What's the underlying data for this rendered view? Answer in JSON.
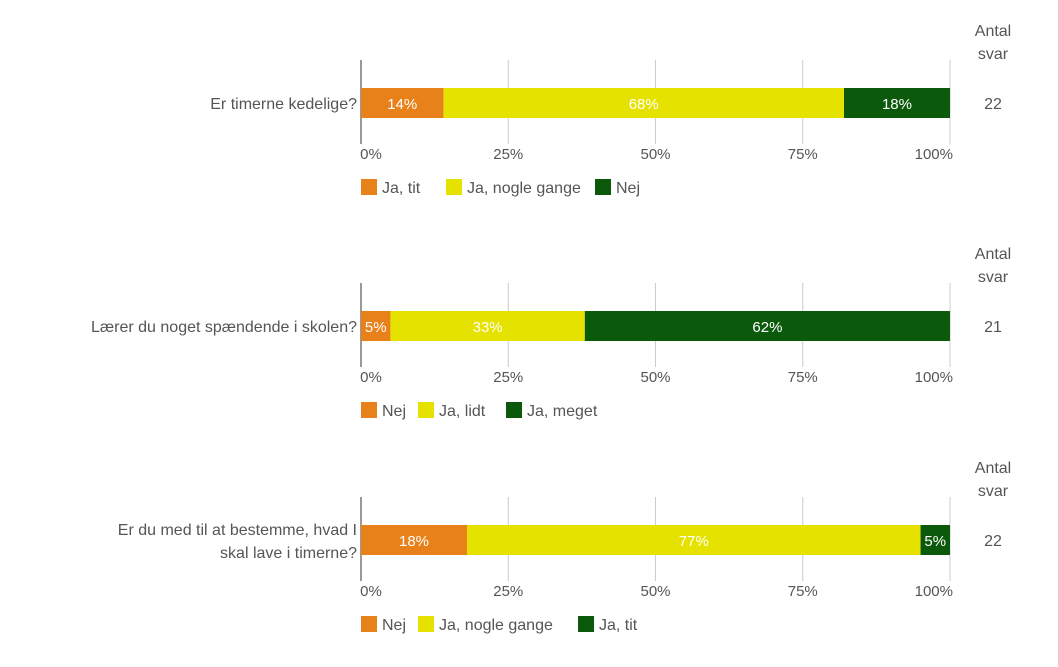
{
  "chart_data": [
    {
      "type": "bar",
      "orientation": "horizontal",
      "stacked": true,
      "percent": true,
      "question": "Er timerne kedelige?",
      "count_header": [
        "Antal",
        "svar"
      ],
      "count": "22",
      "xticks": [
        "0%",
        "25%",
        "50%",
        "75%",
        "100%"
      ],
      "xlim": [
        0,
        100
      ],
      "grid": true,
      "legend_position": "bottom",
      "series": [
        {
          "name": "Ja, tit",
          "value": 14,
          "label": "14%",
          "color": "#e8811a"
        },
        {
          "name": "Ja, nogle gange",
          "value": 68,
          "label": "68%",
          "color": "#e6e200"
        },
        {
          "name": "Nej",
          "value": 18,
          "label": "18%",
          "color": "#0b5a0b"
        }
      ]
    },
    {
      "type": "bar",
      "orientation": "horizontal",
      "stacked": true,
      "percent": true,
      "question": "Lærer du noget spændende i skolen?",
      "count_header": [
        "Antal",
        "svar"
      ],
      "count": "21",
      "xticks": [
        "0%",
        "25%",
        "50%",
        "75%",
        "100%"
      ],
      "xlim": [
        0,
        100
      ],
      "grid": true,
      "legend_position": "bottom",
      "series": [
        {
          "name": "Nej",
          "value": 5,
          "label": "5%",
          "color": "#e8811a"
        },
        {
          "name": "Ja, lidt",
          "value": 33,
          "label": "33%",
          "color": "#e6e200"
        },
        {
          "name": "Ja, meget",
          "value": 62,
          "label": "62%",
          "color": "#0b5a0b"
        }
      ]
    },
    {
      "type": "bar",
      "orientation": "horizontal",
      "stacked": true,
      "percent": true,
      "question": "Er du med til at bestemme, hvad I skal lave i timerne?",
      "question_lines": [
        "Er du med til at bestemme, hvad I",
        "skal lave i timerne?"
      ],
      "count_header": [
        "Antal",
        "svar"
      ],
      "count": "22",
      "xticks": [
        "0%",
        "25%",
        "50%",
        "75%",
        "100%"
      ],
      "xlim": [
        0,
        100
      ],
      "grid": true,
      "legend_position": "bottom",
      "series": [
        {
          "name": "Nej",
          "value": 18,
          "label": "18%",
          "color": "#e8811a"
        },
        {
          "name": "Ja, nogle gange",
          "value": 77,
          "label": "77%",
          "color": "#e6e200"
        },
        {
          "name": "Ja, tit",
          "value": 5,
          "label": "5%",
          "color": "#0b5a0b"
        }
      ]
    }
  ]
}
